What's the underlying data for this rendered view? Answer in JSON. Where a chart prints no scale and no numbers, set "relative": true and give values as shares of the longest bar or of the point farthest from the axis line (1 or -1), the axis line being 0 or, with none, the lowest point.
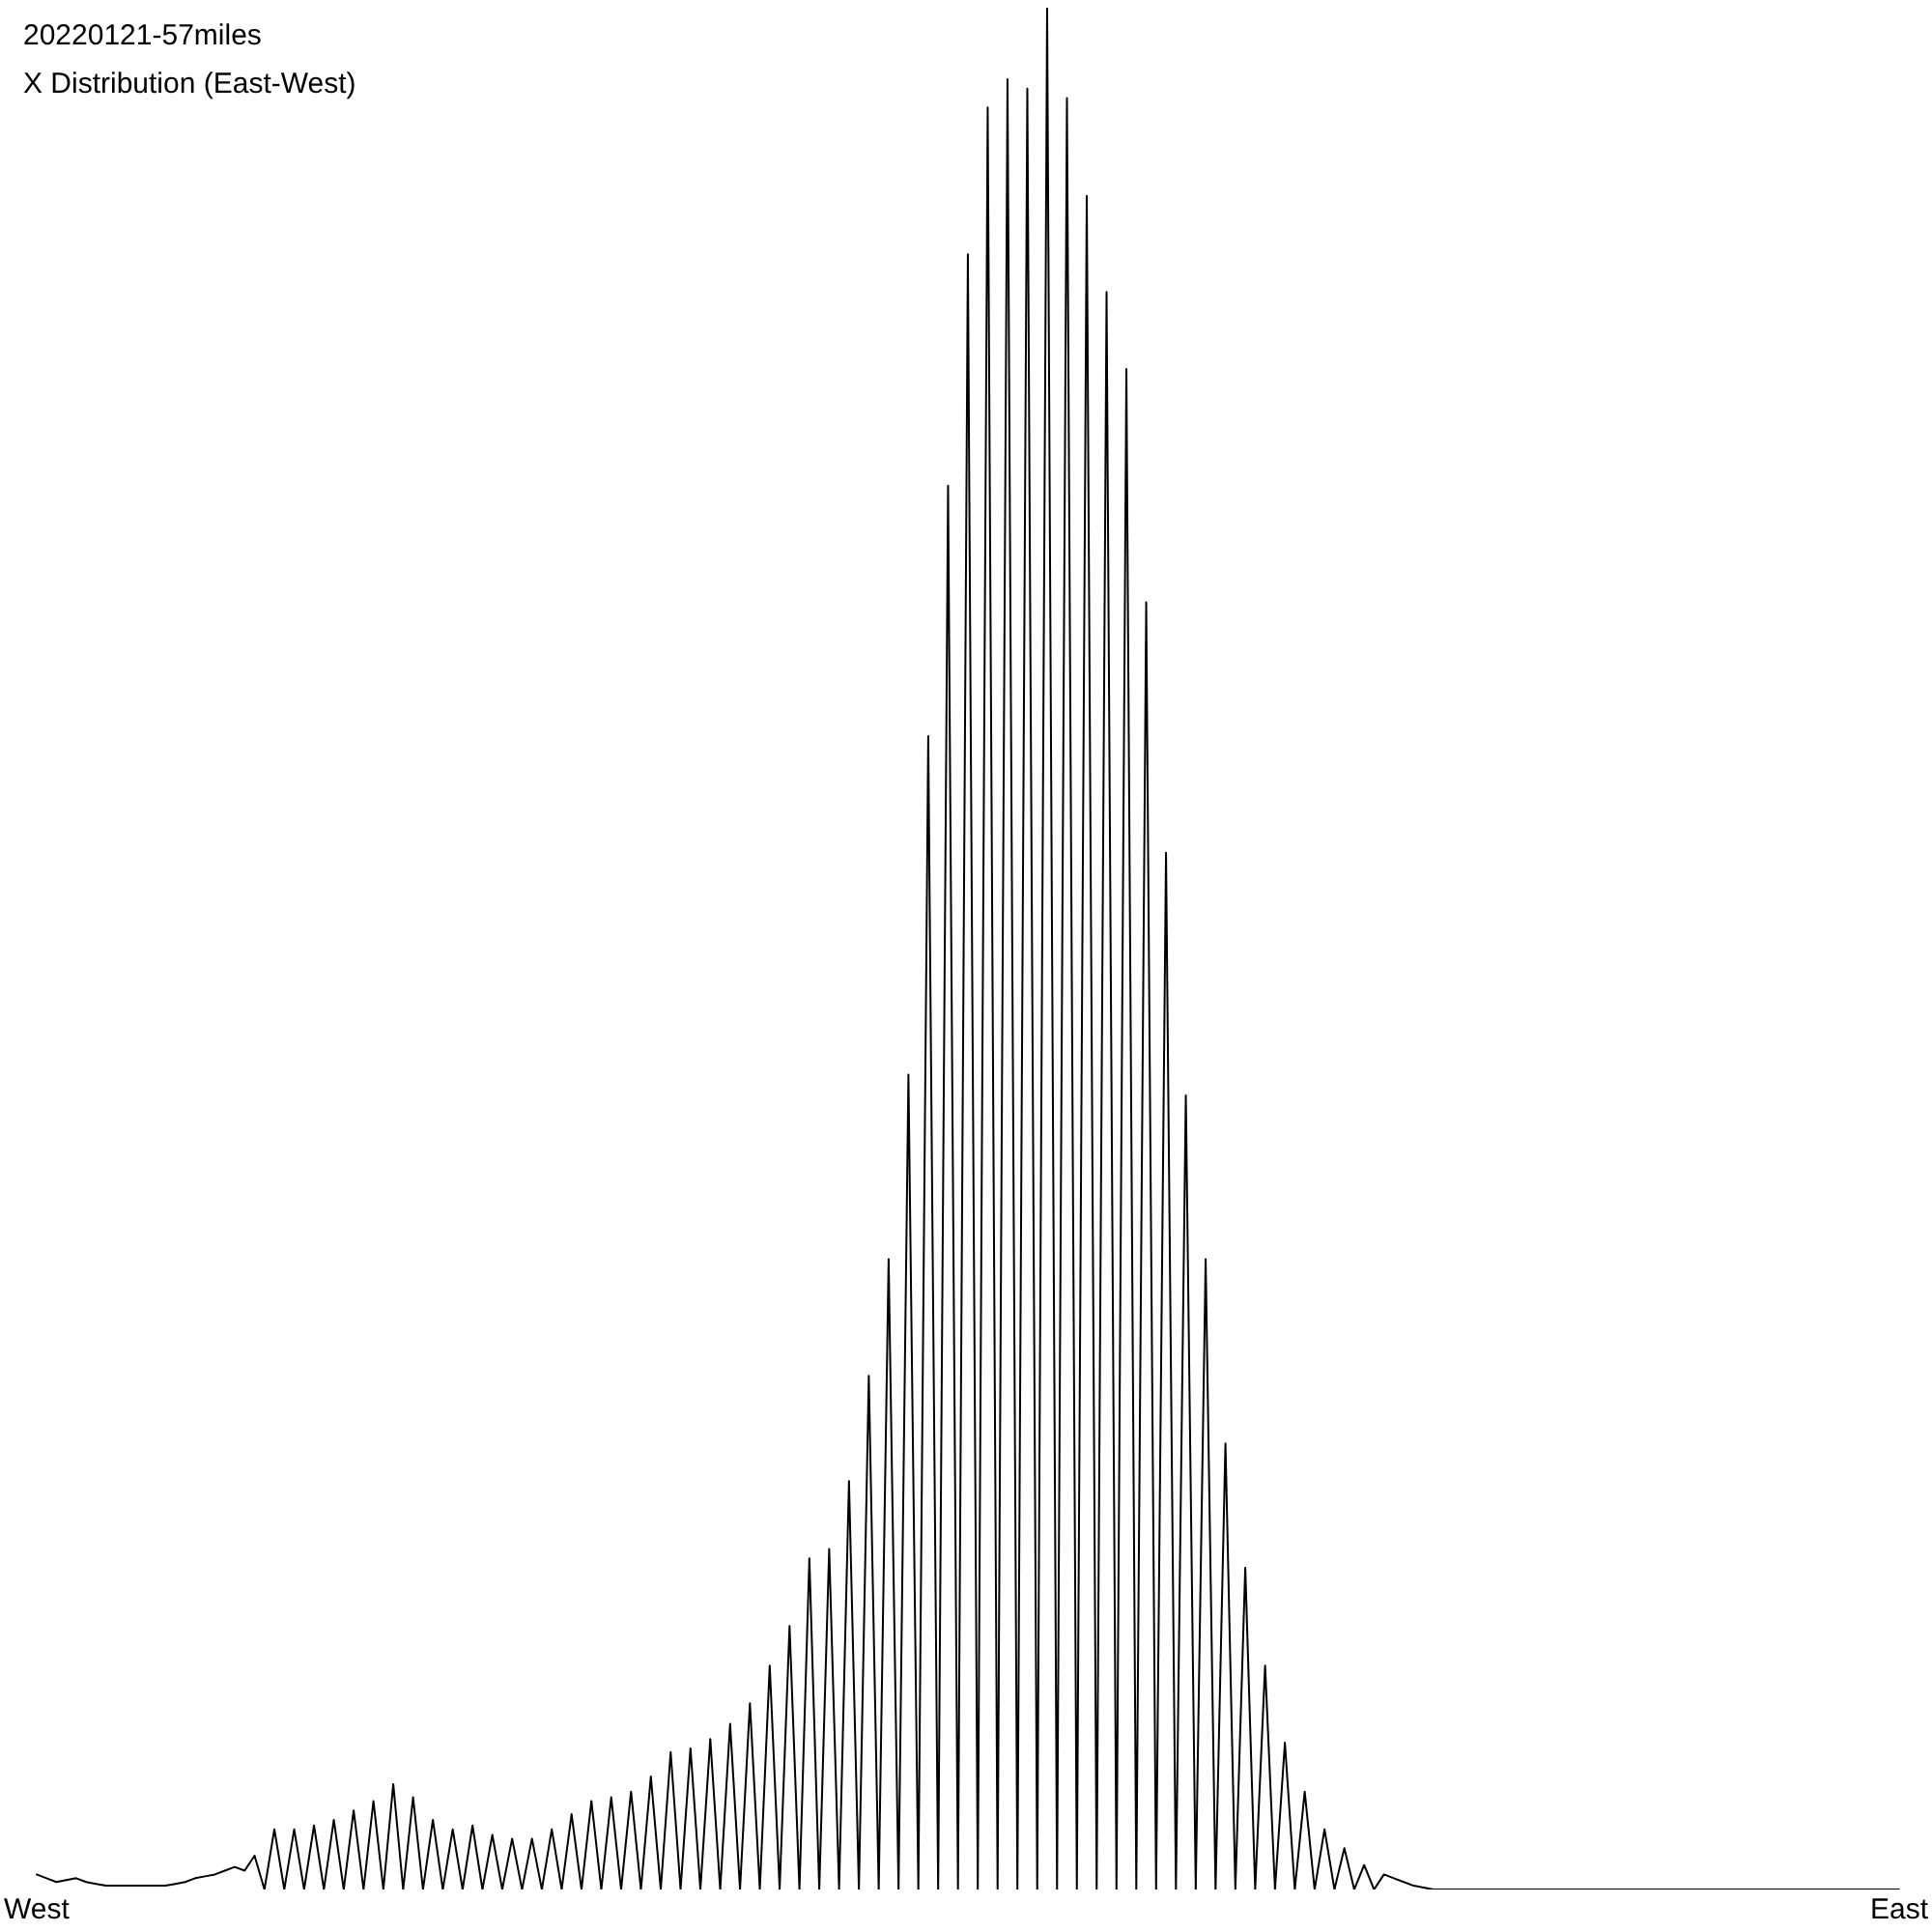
{
  "chart_data": {
    "type": "line",
    "title": "20220121-57miles",
    "subtitle": "X Distribution (East-West)",
    "relative": true,
    "grid": false,
    "legend": false,
    "marker": "none",
    "line_style": "solid",
    "tick_labels": "x",
    "categories": [
      "West",
      null,
      null,
      null,
      null,
      null,
      null,
      null,
      null,
      null,
      null,
      null,
      null,
      null,
      null,
      null,
      null,
      null,
      null,
      null,
      null,
      null,
      null,
      null,
      null,
      null,
      null,
      null,
      null,
      null,
      null,
      null,
      null,
      null,
      null,
      null,
      null,
      null,
      null,
      null,
      null,
      null,
      null,
      null,
      null,
      null,
      null,
      null,
      null,
      null,
      null,
      null,
      null,
      null,
      null,
      null,
      null,
      null,
      null,
      null,
      null,
      null,
      null,
      null,
      null,
      null,
      null,
      null,
      null,
      null,
      null,
      null,
      null,
      null,
      null,
      null,
      null,
      null,
      null,
      null,
      null,
      null,
      null,
      null,
      null,
      null,
      null,
      null,
      null,
      null,
      null,
      null,
      null,
      null,
      null,
      null,
      null,
      null,
      null,
      null,
      null,
      null,
      null,
      null,
      null,
      null,
      null,
      null,
      null,
      null,
      null,
      null,
      null,
      null,
      null,
      null,
      null,
      null,
      null,
      null,
      null,
      null,
      null,
      null,
      null,
      null,
      null,
      null,
      null,
      null,
      null,
      null,
      null,
      null,
      null,
      null,
      null,
      null,
      null,
      null,
      null,
      null,
      null,
      null,
      null,
      null,
      null,
      null,
      null,
      null,
      null,
      null,
      null,
      null,
      null,
      null,
      null,
      null,
      null,
      null,
      null,
      null,
      null,
      null,
      null,
      null,
      null,
      null,
      null,
      null,
      null,
      null,
      null,
      null,
      null,
      null,
      null,
      null,
      null,
      null,
      null,
      null,
      null,
      null,
      null,
      null,
      null,
      null,
      "East"
    ],
    "series": [
      {
        "color": "#000000",
        "values": [
          0.008,
          0.006,
          0.004,
          0.005,
          0.006,
          0.004,
          0.003,
          0.002,
          0.002,
          0.002,
          0.002,
          0.002,
          0.002,
          0.002,
          0.003,
          0.004,
          0.006,
          0.007,
          0.008,
          0.01,
          0.012,
          0.01,
          0.018,
          0,
          0.032,
          0,
          0.032,
          0,
          0.034,
          0,
          0.037,
          0,
          0.042,
          0,
          0.047,
          0,
          0.056,
          0,
          0.049,
          0,
          0.037,
          0,
          0.032,
          0,
          0.034,
          0,
          0.029,
          0,
          0.027,
          0,
          0.027,
          0,
          0.032,
          0,
          0.04,
          0,
          0.047,
          0,
          0.049,
          0,
          0.052,
          0,
          0.06,
          0,
          0.073,
          0,
          0.075,
          0,
          0.08,
          0,
          0.088,
          0,
          0.099,
          0,
          0.119,
          0,
          0.14,
          0,
          0.176,
          0,
          0.181,
          0,
          0.217,
          0,
          0.273,
          0,
          0.335,
          0,
          0.433,
          0,
          0.613,
          0,
          0.746,
          0,
          0.869,
          0,
          0.947,
          0,
          0.962,
          0,
          0.957,
          0,
          1,
          0,
          0.952,
          0,
          0.9,
          0,
          0.849,
          0,
          0.808,
          0,
          0.684,
          0,
          0.551,
          0,
          0.422,
          0,
          0.335,
          0,
          0.237,
          0,
          0.171,
          0,
          0.119,
          0,
          0.078,
          0,
          0.052,
          0,
          0.032,
          0,
          0.022,
          0,
          0.013,
          0,
          0.008,
          0.006,
          0.004,
          0.002,
          0.001,
          0,
          0,
          0,
          0,
          0,
          0,
          0,
          0,
          0,
          0,
          0,
          0,
          0,
          0,
          0,
          0,
          0,
          0,
          0,
          0,
          0,
          0,
          0,
          0,
          0,
          0,
          0,
          0,
          0,
          0,
          0,
          0,
          0,
          0,
          0,
          0,
          0,
          0,
          0,
          0,
          0,
          0,
          0,
          0,
          0,
          0,
          0,
          0
        ]
      }
    ]
  }
}
